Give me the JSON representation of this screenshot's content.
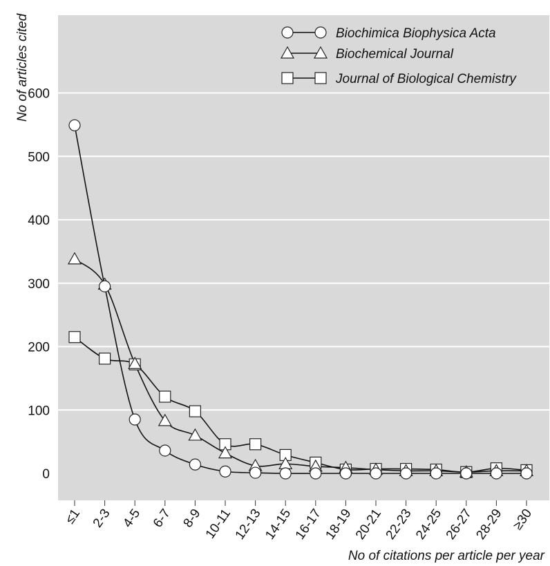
{
  "chart_data": {
    "type": "line",
    "title": "",
    "xlabel": "No of citations per article per year",
    "ylabel": "No of articles cited",
    "ylim": [
      -40,
      600
    ],
    "yticks": [
      0,
      100,
      200,
      300,
      400,
      500,
      600
    ],
    "grid": "horizontal",
    "background": "#d9d9d9",
    "legend_position": "top-right",
    "categories": [
      "≤1",
      "2-3",
      "4-5",
      "6-7",
      "8-9",
      "10-11",
      "12-13",
      "14-15",
      "16-17",
      "18-19",
      "20-21",
      "22-23",
      "24-25",
      "26-27",
      "28-29",
      "≥30"
    ],
    "series": [
      {
        "name": "Biochimica Biophysica Acta",
        "marker": "circle",
        "values": [
          549,
          295,
          85,
          36,
          14,
          3,
          1,
          0,
          0,
          0,
          0,
          0,
          0,
          0,
          0,
          0
        ]
      },
      {
        "name": "Biochemical Journal",
        "marker": "triangle",
        "values": [
          338,
          298,
          173,
          83,
          60,
          32,
          12,
          15,
          11,
          9,
          6,
          4,
          4,
          2,
          4,
          4
        ]
      },
      {
        "name": "Journal of Biological Chemistry",
        "marker": "square",
        "values": [
          215,
          181,
          172,
          121,
          98,
          46,
          46,
          29,
          17,
          6,
          7,
          7,
          6,
          2,
          8,
          5
        ]
      }
    ]
  }
}
